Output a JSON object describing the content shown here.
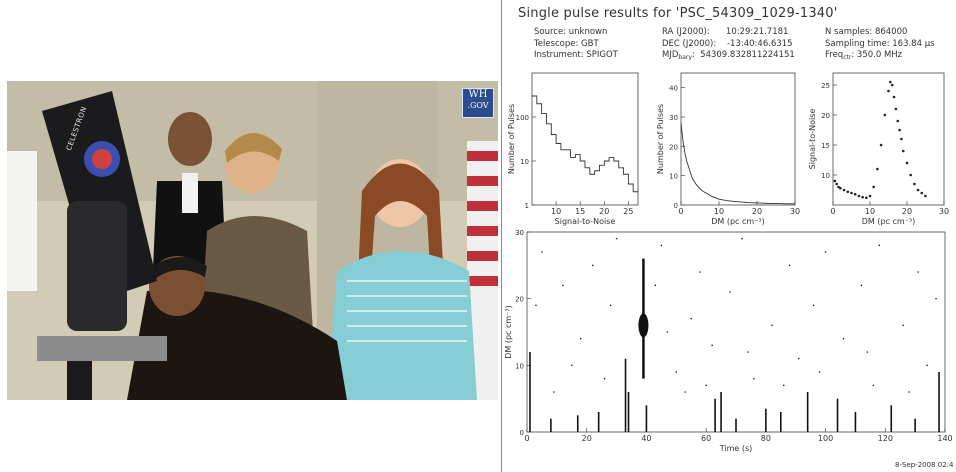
{
  "photo": {
    "badge": {
      "line1": "WH",
      "line2": ".GOV"
    },
    "telescope_brand": "CELESTRON"
  },
  "results": {
    "title": "Single pulse results for 'PSC_54309_1029-1340'",
    "meta_col1": [
      "Source: unknown",
      "Telescope: GBT",
      "Instrument: SPIGOT"
    ],
    "meta_col2": {
      "ra": "RA (J2000):      10:29:21.7181",
      "dec": "DEC (J2000):    -13:40:46.6315",
      "mjd_prefix": "MJD",
      "mjd_sub": "bary",
      "mjd_value": ":  54309.832811224151"
    },
    "meta_col3": {
      "nsamples": "N samples: 864000",
      "sampling": "Sampling time: 163.84 µs",
      "freq_prefix": "Freq",
      "freq_sub": "ctr",
      "freq_value": ": 350.0 MHz"
    },
    "date_stamp": "8-Sep-2008 02:4"
  },
  "chart_data": [
    {
      "type": "line",
      "xlabel": "Signal-to-Noise",
      "ylabel": "Number of Pulses",
      "yscale": "log",
      "xlim": [
        5,
        27
      ],
      "ylim": [
        1,
        1000
      ],
      "xticks": [
        "10",
        "15",
        "20",
        "25"
      ],
      "yticks": [
        "1",
        "10",
        "100"
      ],
      "series": [
        {
          "x": [
            5,
            6,
            7,
            8,
            9,
            10,
            11,
            12,
            13,
            14,
            15,
            16,
            17,
            18,
            19,
            20,
            21,
            22,
            23,
            24,
            25,
            26
          ],
          "y": [
            300,
            200,
            120,
            70,
            40,
            25,
            18,
            18,
            12,
            14,
            10,
            7,
            5,
            6,
            8,
            10,
            12,
            10,
            7,
            5,
            3,
            2
          ]
        }
      ]
    },
    {
      "type": "line",
      "xlabel": "DM (pc cm⁻³)",
      "ylabel": "Number of Pulses",
      "xlim": [
        0,
        30
      ],
      "ylim": [
        0,
        45
      ],
      "xticks": [
        "0",
        "10",
        "20",
        "30"
      ],
      "yticks": [
        "0",
        "10",
        "20",
        "30",
        "40"
      ],
      "series": [
        {
          "x": [
            0,
            0.5,
            1,
            1.5,
            2,
            2.5,
            3,
            3.5,
            4,
            5,
            6,
            7,
            8,
            9,
            10,
            12,
            14,
            16,
            18,
            20,
            22,
            24,
            26,
            28,
            30
          ],
          "y": [
            28,
            22,
            18,
            15,
            13,
            11,
            9,
            8,
            7,
            5.5,
            4.5,
            3.8,
            3,
            2.5,
            2,
            1.5,
            1.2,
            1,
            0.8,
            0.7,
            0.6,
            0.5,
            0.5,
            0.4,
            0.4
          ]
        }
      ]
    },
    {
      "type": "scatter",
      "xlabel": "DM (pc cm⁻³)",
      "ylabel": "Signal-to-Noise",
      "xlim": [
        0,
        30
      ],
      "ylim": [
        5,
        27
      ],
      "xticks": [
        "0",
        "10",
        "20",
        "30"
      ],
      "yticks": [
        "10",
        "15",
        "20",
        "25"
      ],
      "series": [
        {
          "x": [
            0.5,
            1,
            1.5,
            2,
            3,
            4,
            5,
            6,
            7,
            8,
            9,
            10,
            11,
            12,
            13,
            14,
            15,
            15.5,
            16,
            16.5,
            17,
            17.5,
            18,
            18.5,
            19,
            20,
            21,
            22,
            23,
            24,
            25
          ],
          "y": [
            9,
            8.5,
            8,
            7.8,
            7.5,
            7.2,
            7,
            6.8,
            6.5,
            6.3,
            6.2,
            6.5,
            8,
            11,
            15,
            20,
            24,
            25.5,
            25,
            23,
            21,
            19,
            17.5,
            16,
            14,
            12,
            10,
            8.5,
            7.5,
            7,
            6.5
          ]
        }
      ]
    },
    {
      "type": "scatter",
      "xlabel": "Time (s)",
      "ylabel": "DM (pc cm⁻³)",
      "xlim": [
        0,
        140
      ],
      "ylim": [
        0,
        30
      ],
      "xticks": [
        "0",
        "20",
        "40",
        "60",
        "80",
        "100",
        "120",
        "140"
      ],
      "yticks": [
        "0",
        "10",
        "20",
        "30"
      ],
      "spikes": [
        {
          "t": 1,
          "dm_top": 12
        },
        {
          "t": 8,
          "dm_top": 2
        },
        {
          "t": 17,
          "dm_top": 2.5
        },
        {
          "t": 24,
          "dm_top": 3
        },
        {
          "t": 33,
          "dm_top": 11
        },
        {
          "t": 34,
          "dm_top": 6
        },
        {
          "t": 40,
          "dm_top": 4
        },
        {
          "t": 63,
          "dm_top": 5
        },
        {
          "t": 65,
          "dm_top": 6
        },
        {
          "t": 70,
          "dm_top": 2
        },
        {
          "t": 80,
          "dm_top": 3.5
        },
        {
          "t": 85,
          "dm_top": 3
        },
        {
          "t": 94,
          "dm_top": 6
        },
        {
          "t": 104,
          "dm_top": 5
        },
        {
          "t": 110,
          "dm_top": 3
        },
        {
          "t": 122,
          "dm_top": 4
        },
        {
          "t": 130,
          "dm_top": 2
        },
        {
          "t": 138,
          "dm_top": 9
        }
      ],
      "pulse": {
        "t": 39,
        "dm_min": 8,
        "dm_max": 26,
        "dm_peak": 16
      },
      "noise": [
        [
          5,
          27
        ],
        [
          12,
          22
        ],
        [
          18,
          14
        ],
        [
          22,
          25
        ],
        [
          28,
          19
        ],
        [
          45,
          28
        ],
        [
          50,
          9
        ],
        [
          55,
          17
        ],
        [
          58,
          24
        ],
        [
          62,
          13
        ],
        [
          68,
          21
        ],
        [
          72,
          29
        ],
        [
          76,
          8
        ],
        [
          82,
          16
        ],
        [
          88,
          25
        ],
        [
          91,
          11
        ],
        [
          96,
          19
        ],
        [
          100,
          27
        ],
        [
          106,
          14
        ],
        [
          112,
          22
        ],
        [
          116,
          7
        ],
        [
          118,
          28
        ],
        [
          126,
          16
        ],
        [
          131,
          24
        ],
        [
          134,
          10
        ],
        [
          137,
          20
        ],
        [
          9,
          6
        ],
        [
          26,
          8
        ],
        [
          47,
          15
        ],
        [
          53,
          6
        ],
        [
          74,
          12
        ],
        [
          86,
          7
        ],
        [
          98,
          9
        ],
        [
          114,
          12
        ],
        [
          128,
          6
        ],
        [
          3,
          19
        ],
        [
          15,
          10
        ],
        [
          30,
          29
        ],
        [
          43,
          22
        ],
        [
          60,
          7
        ]
      ]
    }
  ]
}
